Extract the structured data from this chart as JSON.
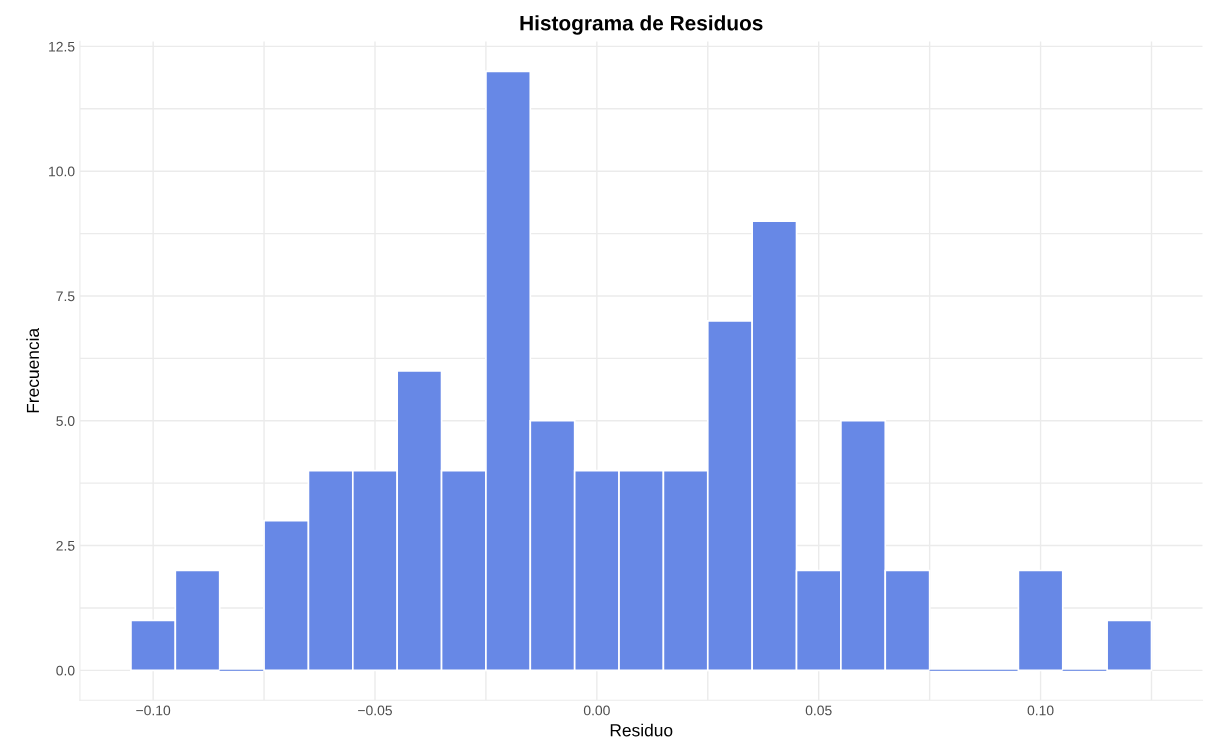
{
  "chart_data": {
    "type": "histogram",
    "title": "Histograma de Residuos",
    "xlabel": "Residuo",
    "ylabel": "Frecuencia",
    "bins": [
      -0.105,
      -0.095,
      -0.085,
      -0.075,
      -0.065,
      -0.055,
      -0.045,
      -0.035,
      -0.025,
      -0.015,
      -0.005,
      0.005,
      0.015,
      0.025,
      0.035,
      0.045,
      0.055,
      0.065,
      0.075,
      0.085,
      0.095,
      0.105,
      0.115,
      0.125
    ],
    "values": [
      1,
      2,
      0,
      3,
      4,
      4,
      6,
      4,
      12,
      5,
      4,
      4,
      4,
      7,
      9,
      2,
      5,
      2,
      0,
      0,
      2,
      0,
      1
    ],
    "color": "#6788e6",
    "xlim": [
      -0.1165,
      0.1365
    ],
    "ylim": [
      -0.6,
      12.6
    ],
    "xticks": [
      {
        "value": -0.1,
        "label": "−0.10"
      },
      {
        "value": -0.075,
        "label": null
      },
      {
        "value": -0.05,
        "label": "−0.05"
      },
      {
        "value": -0.025,
        "label": null
      },
      {
        "value": 0.0,
        "label": "0.00"
      },
      {
        "value": 0.025,
        "label": null
      },
      {
        "value": 0.05,
        "label": "0.05"
      },
      {
        "value": 0.075,
        "label": null
      },
      {
        "value": 0.1,
        "label": "0.10"
      },
      {
        "value": 0.125,
        "label": null
      }
    ],
    "yticks": [
      {
        "value": 0,
        "label": "0.0"
      },
      {
        "value": 1.25,
        "label": null
      },
      {
        "value": 2.5,
        "label": "2.5"
      },
      {
        "value": 3.75,
        "label": null
      },
      {
        "value": 5,
        "label": "5.0"
      },
      {
        "value": 6.25,
        "label": null
      },
      {
        "value": 7.5,
        "label": "7.5"
      },
      {
        "value": 8.75,
        "label": null
      },
      {
        "value": 10,
        "label": "10.0"
      },
      {
        "value": 11.25,
        "label": null
      },
      {
        "value": 12.5,
        "label": "12.5"
      }
    ],
    "grid": true
  }
}
